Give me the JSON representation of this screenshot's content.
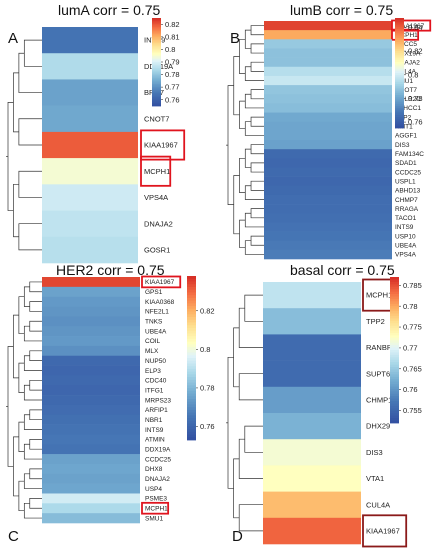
{
  "panels": [
    {
      "id": "A",
      "letter": "A",
      "title": "lumA corr = 0.75",
      "genes": [
        "INTS9",
        "DDX19A",
        "BRD7",
        "CNOT7",
        "KIAA1967",
        "MCPH1",
        "VPS4A",
        "DNAJA2",
        "GOSR1"
      ],
      "values": [
        0.765,
        0.785,
        0.774,
        0.775,
        0.82,
        0.795,
        0.789,
        0.787,
        0.786
      ],
      "colorbar": {
        "ticks": [
          "0.82",
          "0.81",
          "0.8",
          "0.79",
          "0.78",
          "0.77",
          "0.76"
        ],
        "tick_values": [
          0.82,
          0.81,
          0.8,
          0.79,
          0.78,
          0.77,
          0.76
        ],
        "min": 0.755,
        "max": 0.825
      },
      "highlighted": [
        "KIAA1967",
        "MCPH1"
      ]
    },
    {
      "id": "B",
      "letter": "B",
      "title": "lumB corr = 0.75",
      "genes": [
        "KIAA1967",
        "MCPH1",
        "ERCC5",
        "DDX19A",
        "DNAJA2",
        "CUL4A",
        "SMU1",
        "CNOT7",
        "POLR2C",
        "R3HCC1",
        "TPP2",
        "NMT1",
        "AGGF1",
        "DIS3",
        "FAM134C",
        "SDAD1",
        "CCDC25",
        "USPL1",
        "ABHD13",
        "CHMP7",
        "RRAGA",
        "TACO1",
        "INTS9",
        "USP10",
        "UBE4A",
        "VPS4A"
      ],
      "values": [
        0.845,
        0.83,
        0.79,
        0.788,
        0.788,
        0.796,
        0.799,
        0.789,
        0.788,
        0.787,
        0.782,
        0.781,
        0.781,
        0.78,
        0.765,
        0.764,
        0.765,
        0.764,
        0.765,
        0.766,
        0.766,
        0.767,
        0.768,
        0.769,
        0.77,
        0.771
      ],
      "colorbar": {
        "ticks": [
          "0.84",
          "0.82",
          "0.8",
          "0.78",
          "0.76"
        ],
        "tick_values": [
          0.84,
          0.82,
          0.8,
          0.78,
          0.76
        ],
        "min": 0.755,
        "max": 0.848
      },
      "highlighted": [
        "KIAA1967",
        "MCPH1"
      ]
    },
    {
      "id": "C",
      "letter": "C",
      "title": "HER2 corr = 0.75",
      "genes": [
        "KIAA1967",
        "GPS1",
        "KIAA0368",
        "NFE2L1",
        "TNKS",
        "UBE4A",
        "COIL",
        "MLX",
        "NUP50",
        "ELP3",
        "CDC40",
        "ITFG1",
        "MRPS23",
        "ARFIP1",
        "NBR1",
        "INTS9",
        "ATMIN",
        "DDX19A",
        "CCDC25",
        "DHX8",
        "DNAJA2",
        "USP4",
        "PSME3",
        "MCPH1",
        "SMU1"
      ],
      "values": [
        0.835,
        0.776,
        0.774,
        0.773,
        0.772,
        0.773,
        0.774,
        0.772,
        0.762,
        0.761,
        0.762,
        0.761,
        0.762,
        0.763,
        0.764,
        0.765,
        0.766,
        0.765,
        0.776,
        0.777,
        0.776,
        0.777,
        0.795,
        0.789,
        0.782
      ],
      "colorbar": {
        "ticks": [
          "0.82",
          "0.8",
          "0.78",
          "0.76"
        ],
        "tick_values": [
          0.82,
          0.8,
          0.78,
          0.76
        ],
        "min": 0.753,
        "max": 0.838
      },
      "highlighted": [
        "KIAA1967",
        "MCPH1"
      ]
    },
    {
      "id": "D",
      "letter": "D",
      "title": "basal corr = 0.75",
      "genes": [
        "MCPH1",
        "TPP2",
        "RANBP3",
        "SUPT6H",
        "CHMP1A",
        "DHX29",
        "DIS3",
        "VTA1",
        "CUL4A",
        "KIAA1967"
      ],
      "values": [
        0.768,
        0.764,
        0.756,
        0.756,
        0.761,
        0.763,
        0.772,
        0.773,
        0.779,
        0.784
      ],
      "colorbar": {
        "ticks": [
          "0.785",
          "0.78",
          "0.775",
          "0.77",
          "0.765",
          "0.76",
          "0.755"
        ],
        "tick_values": [
          0.785,
          0.78,
          0.775,
          0.77,
          0.765,
          0.76,
          0.755
        ],
        "min": 0.752,
        "max": 0.787
      },
      "highlighted": [
        "MCPH1",
        "KIAA1967"
      ]
    }
  ]
}
